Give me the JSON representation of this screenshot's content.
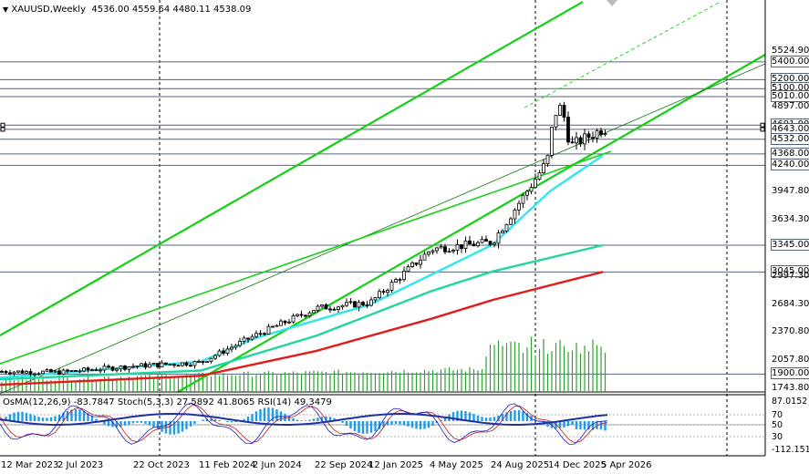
{
  "header": {
    "menu_glyph": "▼",
    "symbol": "XAUUSD,Weekly",
    "open": "4536.00",
    "high": "4559.64",
    "low": "4480.11",
    "close": "4538.09"
  },
  "indicators_label": "OsMA(12,26,9) -83.7847  Stoch(5,3,3) 27.5892 41.8065  RSI(14) 49.3479",
  "price_axis": [
    {
      "text": "5524.90",
      "price": 5524.9,
      "boxed": false
    },
    {
      "text": "5400.00",
      "price": 5400,
      "boxed": true
    },
    {
      "text": "5200.00",
      "price": 5200,
      "boxed": true
    },
    {
      "text": "5100.00",
      "price": 5100,
      "boxed": true
    },
    {
      "text": "5010.00",
      "price": 5010,
      "boxed": true
    },
    {
      "text": "4897.00",
      "price": 4897,
      "boxed": false
    },
    {
      "text": "4691.00",
      "price": 4691,
      "boxed": true
    },
    {
      "text": "4643.00",
      "price": 4643,
      "boxed": true
    },
    {
      "text": "4532.00",
      "price": 4532,
      "boxed": true
    },
    {
      "text": "4368.00",
      "price": 4368,
      "boxed": true
    },
    {
      "text": "4240.00",
      "price": 4240,
      "boxed": true
    },
    {
      "text": "3947.80",
      "price": 3947.8,
      "boxed": false
    },
    {
      "text": "3634.30",
      "price": 3634.3,
      "boxed": false
    },
    {
      "text": "3345.00",
      "price": 3345,
      "boxed": true
    },
    {
      "text": "3045.00",
      "price": 3045,
      "boxed": true
    },
    {
      "text": "2997.30",
      "price": 2997.3,
      "boxed": false
    },
    {
      "text": "2684.30",
      "price": 2684.3,
      "boxed": false
    },
    {
      "text": "2370.80",
      "price": 2370.8,
      "boxed": false
    },
    {
      "text": "2057.80",
      "price": 2057.8,
      "boxed": false
    },
    {
      "text": "1900.00",
      "price": 1900,
      "boxed": true
    },
    {
      "text": "1743.80",
      "price": 1743.8,
      "boxed": false
    }
  ],
  "osc_axis": [
    "87.0152",
    "70",
    "50",
    "30",
    "-112.1518"
  ],
  "time_axis": [
    "12 Mar 2023",
    "2 Jul 2023",
    "22 Oct 2023",
    "11 Feb 2024",
    "2 Jun 2024",
    "22 Sep 2024",
    "12 Jan 2025",
    "4 May 2025",
    "24 Aug 2025",
    "14 Dec 2025",
    "5 Apr 2026"
  ],
  "colors": {
    "channel": "#14d014",
    "ma_short": "#2fe6ef",
    "ma_mid": "#1fd6a0",
    "ma_long": "#e21b1b",
    "candle": "#000000",
    "volume": "#2da02d",
    "osma": "#1e9be8",
    "stoch_main": "#1a1ac8",
    "stoch_signal": "#c01818",
    "rsi": "#2030a0",
    "level_line": "#54637a"
  },
  "chart_data": {
    "type": "candlestick",
    "symbol": "XAUUSD",
    "timeframe": "Weekly",
    "last_bar": {
      "open": 4536.0,
      "high": 4559.64,
      "low": 4480.11,
      "close": 4538.09
    },
    "horizontal_levels": [
      5400,
      5200,
      5100,
      5010,
      4691,
      4643,
      4532,
      4368,
      4240,
      3345,
      3045,
      1900
    ],
    "price_path": [
      [
        "12 Mar 2023",
        1930
      ],
      [
        "2 Jul 2023",
        1920
      ],
      [
        "22 Oct 2023",
        1990
      ],
      [
        "11 Feb 2024",
        2030
      ],
      [
        "2 Jun 2024",
        2330
      ],
      [
        "22 Sep 2024",
        2640
      ],
      [
        "12 Jan 2025",
        2700
      ],
      [
        "4 May 2025",
        3300
      ],
      [
        "24 Aug 2025",
        3380
      ],
      [
        "14 Dec 2025",
        4330
      ],
      [
        "5 Apr 2026",
        4650
      ]
    ],
    "moving_averages": [
      {
        "color": "#2fe6ef",
        "points": [
          [
            "12 Mar 2023",
            1860
          ],
          [
            "11 Feb 2024",
            2040
          ],
          [
            "2 Jun 2024",
            2300
          ],
          [
            "12 Jan 2025",
            2680
          ],
          [
            "24 Aug 2025",
            3350
          ],
          [
            "14 Dec 2025",
            3950
          ],
          [
            "5 Apr 2026",
            4350
          ]
        ]
      },
      {
        "color": "#1fd6a0",
        "points": [
          [
            "12 Mar 2023",
            1840
          ],
          [
            "11 Feb 2024",
            1940
          ],
          [
            "22 Sep 2024",
            2330
          ],
          [
            "4 May 2025",
            2830
          ],
          [
            "24 Aug 2025",
            3050
          ],
          [
            "5 Apr 2026",
            3345
          ]
        ]
      },
      {
        "color": "#e21b1b",
        "points": [
          [
            "12 Mar 2023",
            1780
          ],
          [
            "11 Feb 2024",
            1880
          ],
          [
            "22 Sep 2024",
            2160
          ],
          [
            "4 May 2025",
            2520
          ],
          [
            "24 Aug 2025",
            2730
          ],
          [
            "5 Apr 2026",
            3045
          ]
        ]
      }
    ],
    "oscillator_levels": [
      70,
      50,
      30
    ],
    "oscillator_values": {
      "OsMA": -83.7847,
      "Stoch_main": 27.5892,
      "Stoch_signal": 41.8065,
      "RSI": 49.3479
    },
    "oscillator_range": [
      -112.1518,
      87.0152
    ]
  }
}
